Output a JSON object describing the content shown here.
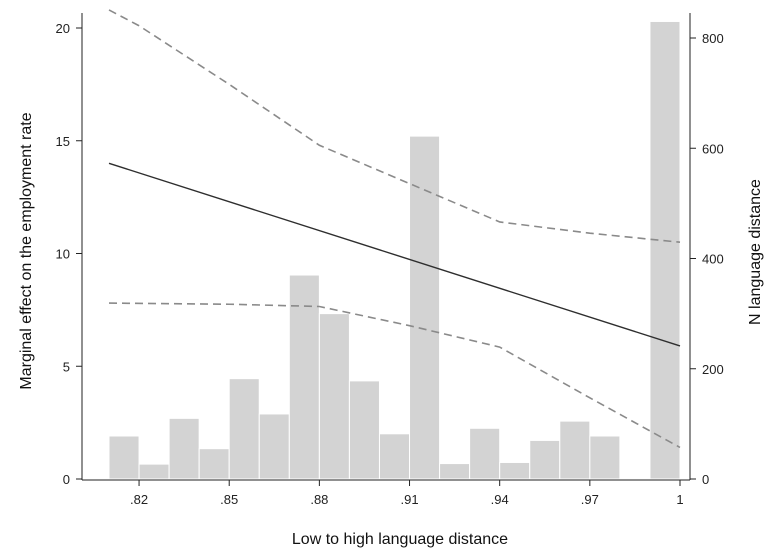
{
  "chart_data": {
    "type": "bar",
    "xlabel": "Low to high language distance",
    "ylabel_left": "Marginal effect on the employment rate",
    "ylabel_right": "N language distance",
    "x_ticks": [
      ".82",
      ".85",
      ".88",
      ".91",
      ".94",
      ".97",
      "1"
    ],
    "x_tick_values": [
      0.82,
      0.85,
      0.88,
      0.91,
      0.94,
      0.97,
      1.0
    ],
    "xlim": [
      0.81,
      1.0
    ],
    "left_ticks": [
      0,
      5,
      10,
      15,
      20
    ],
    "ylim_left": [
      0,
      20
    ],
    "right_ticks": [
      0,
      200,
      400,
      600,
      800
    ],
    "ylim_right": [
      0,
      800
    ],
    "bar_width": 0.01,
    "bars": [
      {
        "x": 0.815,
        "count": 78
      },
      {
        "x": 0.825,
        "count": 27
      },
      {
        "x": 0.835,
        "count": 110
      },
      {
        "x": 0.845,
        "count": 55
      },
      {
        "x": 0.855,
        "count": 182
      },
      {
        "x": 0.865,
        "count": 118
      },
      {
        "x": 0.875,
        "count": 370
      },
      {
        "x": 0.885,
        "count": 300
      },
      {
        "x": 0.895,
        "count": 178
      },
      {
        "x": 0.905,
        "count": 82
      },
      {
        "x": 0.915,
        "count": 622
      },
      {
        "x": 0.925,
        "count": 28
      },
      {
        "x": 0.935,
        "count": 92
      },
      {
        "x": 0.945,
        "count": 30
      },
      {
        "x": 0.955,
        "count": 70
      },
      {
        "x": 0.965,
        "count": 105
      },
      {
        "x": 0.975,
        "count": 78
      },
      {
        "x": 0.995,
        "count": 830
      }
    ],
    "marginal_effect": {
      "x": [
        0.81,
        1.0
      ],
      "y": [
        14.0,
        5.9
      ]
    },
    "ci_upper": {
      "x": [
        0.81,
        0.82,
        0.85,
        0.88,
        0.91,
        0.94,
        0.97,
        1.0
      ],
      "y": [
        20.8,
        20.1,
        17.5,
        14.8,
        13.1,
        11.4,
        10.9,
        10.5
      ]
    },
    "ci_lower": {
      "x": [
        0.81,
        0.85,
        0.88,
        0.91,
        0.94,
        0.97,
        1.0
      ],
      "y": [
        7.8,
        7.75,
        7.65,
        6.8,
        5.85,
        3.6,
        1.4
      ]
    }
  }
}
